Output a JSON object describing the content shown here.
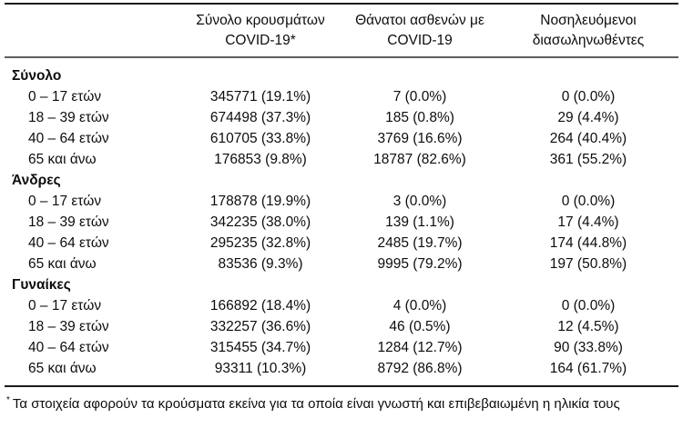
{
  "table": {
    "headers": [
      {
        "line1": "Σύνολο κρουσμάτων",
        "line2": "COVID-19*"
      },
      {
        "line1": "Θάνατοι ασθενών με",
        "line2": "COVID-19"
      },
      {
        "line1": "Νοσηλευόμενοι",
        "line2": "διασωληνωθέντες"
      }
    ],
    "sections": [
      {
        "label": "Σύνολο",
        "rows": [
          {
            "age": "0 – 17 ετών",
            "cases": "345771 (19.1%)",
            "deaths": "7 (0.0%)",
            "intubated": "0 (0.0%)"
          },
          {
            "age": "18 – 39 ετών",
            "cases": "674498 (37.3%)",
            "deaths": "185 (0.8%)",
            "intubated": "29 (4.4%)"
          },
          {
            "age": "40 – 64 ετών",
            "cases": "610705 (33.8%)",
            "deaths": "3769 (16.6%)",
            "intubated": "264 (40.4%)"
          },
          {
            "age": "65 και άνω",
            "cases": "176853 (9.8%)",
            "deaths": "18787 (82.6%)",
            "intubated": "361 (55.2%)"
          }
        ]
      },
      {
        "label": "Άνδρες",
        "rows": [
          {
            "age": "0 – 17 ετών",
            "cases": "178878 (19.9%)",
            "deaths": "3 (0.0%)",
            "intubated": "0 (0.0%)"
          },
          {
            "age": "18 – 39 ετών",
            "cases": "342235 (38.0%)",
            "deaths": "139 (1.1%)",
            "intubated": "17 (4.4%)"
          },
          {
            "age": "40 – 64 ετών",
            "cases": "295235 (32.8%)",
            "deaths": "2485 (19.7%)",
            "intubated": "174 (44.8%)"
          },
          {
            "age": "65 και άνω",
            "cases": "83536 (9.3%)",
            "deaths": "9995 (79.2%)",
            "intubated": "197 (50.8%)"
          }
        ]
      },
      {
        "label": "Γυναίκες",
        "rows": [
          {
            "age": "0 – 17 ετών",
            "cases": "166892 (18.4%)",
            "deaths": "4 (0.0%)",
            "intubated": "0 (0.0%)"
          },
          {
            "age": "18 – 39 ετών",
            "cases": "332257 (36.6%)",
            "deaths": "46 (0.5%)",
            "intubated": "12 (4.5%)"
          },
          {
            "age": "40 – 64 ετών",
            "cases": "315455 (34.7%)",
            "deaths": "1284 (12.7%)",
            "intubated": "90 (33.8%)"
          },
          {
            "age": "65 και άνω",
            "cases": "93311 (10.3%)",
            "deaths": "8792 (86.8%)",
            "intubated": "164 (61.7%)"
          }
        ]
      }
    ],
    "footnote": {
      "marker": "*",
      "text": "Τα στοιχεία αφορούν τα κρούσματα εκείνα για τα οποία είναι γνωστή και επιβεβαιωμένη η ηλικία τους"
    }
  }
}
